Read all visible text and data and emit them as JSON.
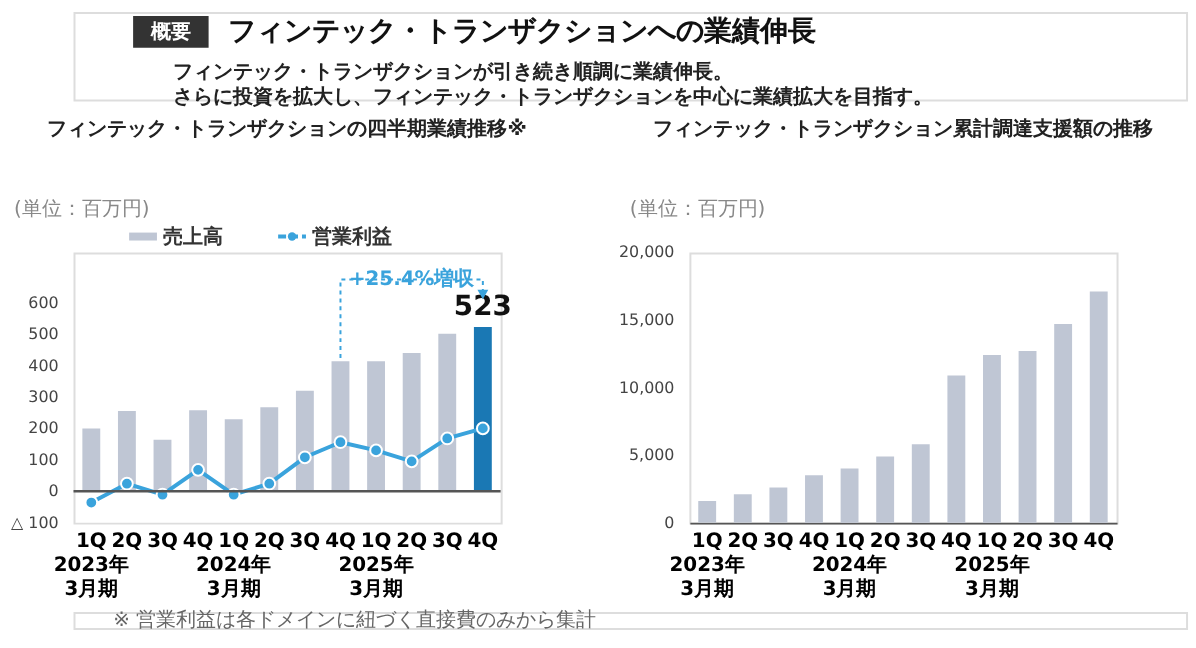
{
  "chart_data": [
    {
      "type": "bar",
      "title": "フィンテック・トランザクションの四半期業績推移※",
      "categories": [
        "1Q\n2023年\n3月期",
        "2Q",
        "3Q",
        "4Q",
        "1Q\n2024年\n3月期",
        "2Q",
        "3Q",
        "4Q",
        "1Q\n2025年\n3月期",
        "2Q",
        "3Q",
        "4Q"
      ],
      "series": [
        {
          "name": "売上高",
          "colors": [
            "#bfc6d4",
            "#bfc6d4",
            "#bfc6d4",
            "#bfc6d4",
            "#bfc6d4",
            "#bfc6d4",
            "#bfc6d4",
            "#bfc6d4",
            "#bfc6d4",
            "#bfc6d4",
            "#bfc6d4",
            "#1a78b4"
          ],
          "values": [
            200,
            255,
            164,
            258,
            229,
            267,
            320,
            414,
            414,
            440,
            501,
            523
          ],
          "value_labels": [
            null,
            null,
            null,
            null,
            null,
            null,
            null,
            null,
            null,
            null,
            null,
            "523"
          ]
        },
        {
          "name": "営業利益",
          "type": "line",
          "color": "#3aa3dc",
          "values": [
            -36,
            24,
            -11,
            68,
            -11,
            24,
            108,
            156,
            130,
            95,
            168,
            200
          ]
        }
      ],
      "ylim": [
        -100,
        760
      ],
      "yticks": [
        {
          "value": -100,
          "label": "△ 100"
        },
        0,
        100,
        200,
        300,
        400,
        500,
        600
      ],
      "legend": "top",
      "marker": "circle",
      "line_style": "solid",
      "annotations": [
        "概要",
        "フィンテック・トランザクションへの業績伸長",
        "フィンテック・トランザクションが引き続き順調に業績伸長。",
        "さらに投資を拡大し、フィンテック・トランザクションを中心に業績拡大を目指す。",
        "(単位：百万円)",
        "+25.4%増収",
        "※ 営業利益は各ドメインに紐づく直接費のみから集計"
      ]
    },
    {
      "type": "bar",
      "title": "フィンテック・トランザクション累計調達支援額の推移",
      "categories": [
        "1Q\n2023年\n3月期",
        "2Q",
        "3Q",
        "4Q",
        "1Q\n2024年\n3月期",
        "2Q",
        "3Q",
        "4Q",
        "1Q\n2025年\n3月期",
        "2Q",
        "3Q",
        "4Q"
      ],
      "series": [
        {
          "color": "#bfc6d4",
          "values": [
            1600,
            2100,
            2600,
            3500,
            4000,
            4900,
            5800,
            10900,
            12400,
            12700,
            14700,
            17100
          ]
        }
      ],
      "ylim": [
        0,
        20000
      ],
      "yticks": [
        0,
        {
          "value": 5000,
          "label": "5,000"
        },
        {
          "value": 10000,
          "label": "10,000"
        },
        {
          "value": 15000,
          "label": "15,000"
        },
        {
          "value": 20000,
          "label": "20,000"
        }
      ],
      "annotations": [
        "(単位：百万円)"
      ]
    }
  ]
}
